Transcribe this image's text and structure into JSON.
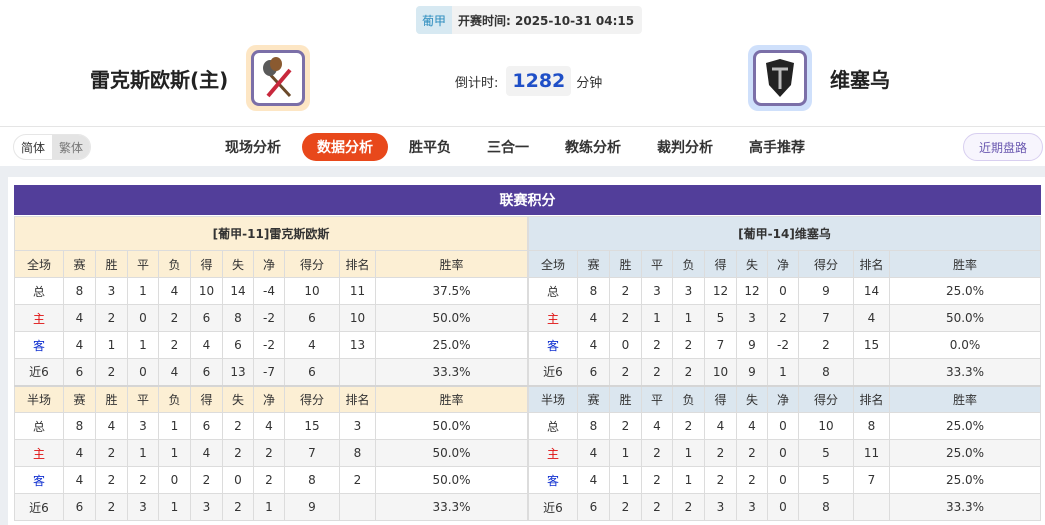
{
  "match": {
    "league": "葡甲",
    "kickoff": "开赛时间: 2025-10-31 04:15"
  },
  "home": {
    "name": "雷克斯欧斯(主)",
    "logo": "crossed-rackets-logo"
  },
  "away": {
    "name": "维塞乌",
    "logo": "shield-logo"
  },
  "countdown": {
    "label": "倒计时:",
    "value": "1282",
    "unit": "分钟"
  },
  "lang": {
    "simplified": "简体",
    "traditional": "繁体"
  },
  "tabs": [
    "现场分析",
    "数据分析",
    "胜平负",
    "三合一",
    "教练分析",
    "裁判分析",
    "高手推荐"
  ],
  "active_tab": "数据分析",
  "recent_button": "近期盘路",
  "section_title": "联赛积分",
  "colors": {
    "accent": "#e8481b",
    "title_bar": "#523e9a",
    "home_header": "#fcefd4",
    "away_header": "#dbe6ef"
  },
  "columns_full": [
    "全场",
    "赛",
    "胜",
    "平",
    "负",
    "得",
    "失",
    "净",
    "得分",
    "排名",
    "胜率"
  ],
  "columns_half": [
    "半场",
    "赛",
    "胜",
    "平",
    "负",
    "得",
    "失",
    "净",
    "得分",
    "排名",
    "胜率"
  ],
  "home_table": {
    "title": "[葡甲-11]雷克斯欧斯",
    "full": [
      [
        "总",
        "8",
        "3",
        "1",
        "4",
        "10",
        "14",
        "-4",
        "10",
        "11",
        "37.5%"
      ],
      [
        "主",
        "4",
        "2",
        "0",
        "2",
        "6",
        "8",
        "-2",
        "6",
        "10",
        "50.0%"
      ],
      [
        "客",
        "4",
        "1",
        "1",
        "2",
        "4",
        "6",
        "-2",
        "4",
        "13",
        "25.0%"
      ],
      [
        "近6",
        "6",
        "2",
        "0",
        "4",
        "6",
        "13",
        "-7",
        "6",
        "",
        "33.3%"
      ]
    ],
    "half": [
      [
        "总",
        "8",
        "4",
        "3",
        "1",
        "6",
        "2",
        "4",
        "15",
        "3",
        "50.0%"
      ],
      [
        "主",
        "4",
        "2",
        "1",
        "1",
        "4",
        "2",
        "2",
        "7",
        "8",
        "50.0%"
      ],
      [
        "客",
        "4",
        "2",
        "2",
        "0",
        "2",
        "0",
        "2",
        "8",
        "2",
        "50.0%"
      ],
      [
        "近6",
        "6",
        "2",
        "3",
        "1",
        "3",
        "2",
        "1",
        "9",
        "",
        "33.3%"
      ]
    ]
  },
  "away_table": {
    "title": "[葡甲-14]维塞乌",
    "full": [
      [
        "总",
        "8",
        "2",
        "3",
        "3",
        "12",
        "12",
        "0",
        "9",
        "14",
        "25.0%"
      ],
      [
        "主",
        "4",
        "2",
        "1",
        "1",
        "5",
        "3",
        "2",
        "7",
        "4",
        "50.0%"
      ],
      [
        "客",
        "4",
        "0",
        "2",
        "2",
        "7",
        "9",
        "-2",
        "2",
        "15",
        "0.0%"
      ],
      [
        "近6",
        "6",
        "2",
        "2",
        "2",
        "10",
        "9",
        "1",
        "8",
        "",
        "33.3%"
      ]
    ],
    "half": [
      [
        "总",
        "8",
        "2",
        "4",
        "2",
        "4",
        "4",
        "0",
        "10",
        "8",
        "25.0%"
      ],
      [
        "主",
        "4",
        "1",
        "2",
        "1",
        "2",
        "2",
        "0",
        "5",
        "11",
        "25.0%"
      ],
      [
        "客",
        "4",
        "1",
        "2",
        "1",
        "2",
        "2",
        "0",
        "5",
        "7",
        "25.0%"
      ],
      [
        "近6",
        "6",
        "2",
        "2",
        "2",
        "3",
        "3",
        "0",
        "8",
        "",
        "33.3%"
      ]
    ]
  }
}
